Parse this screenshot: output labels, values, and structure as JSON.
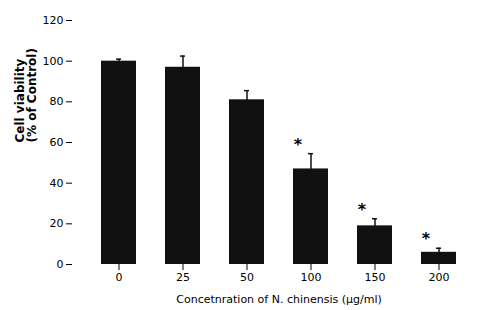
{
  "chart_data": {
    "type": "bar",
    "categories": [
      "0",
      "25",
      "50",
      "100",
      "150",
      "200"
    ],
    "values": [
      100,
      97,
      81,
      47,
      19,
      6
    ],
    "errors": [
      1.0,
      5.5,
      4.5,
      7.5,
      3.5,
      2.0
    ],
    "color": "#111111",
    "xlabel": "Concetnration of N. chinensis (μg/ml)",
    "ylabel": "Cell viability\n(% of Control)",
    "ylim": [
      0,
      120
    ],
    "yticks": [
      0,
      20,
      40,
      60,
      80,
      100,
      120
    ],
    "grid": false,
    "annotations": [
      {
        "category": "100",
        "text": "*"
      },
      {
        "category": "150",
        "text": "*"
      },
      {
        "category": "200",
        "text": "*"
      }
    ]
  }
}
